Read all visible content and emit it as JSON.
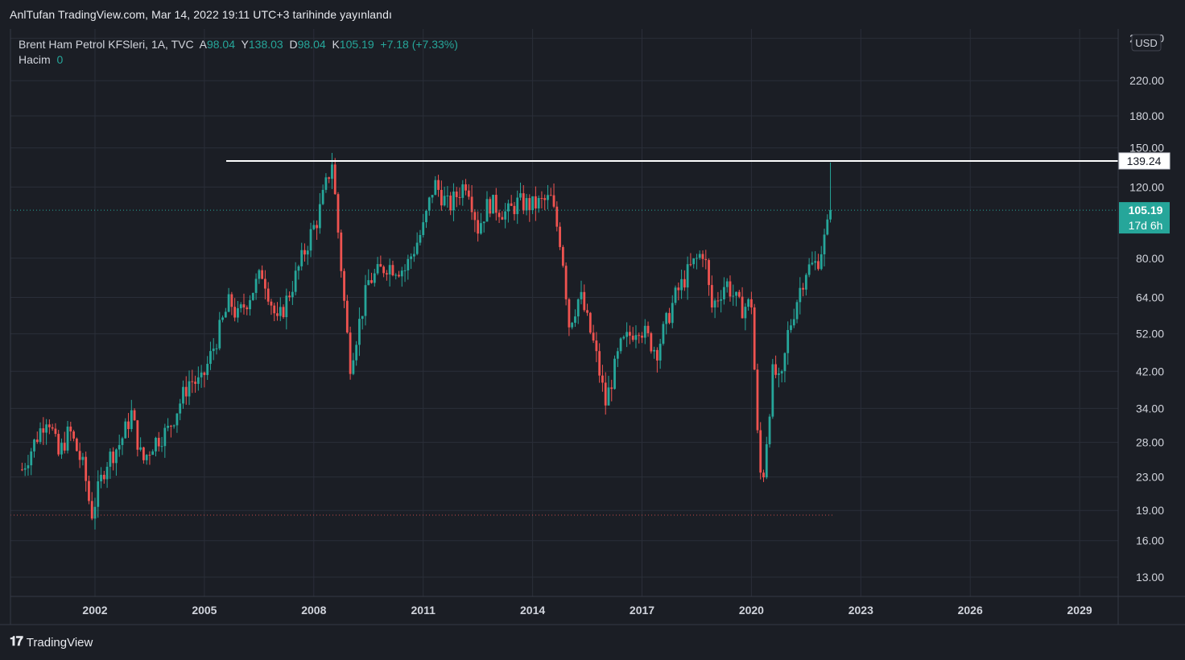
{
  "header": {
    "published": "AnlTufan TradingView.com, Mar 14, 2022 19:11 UTC+3 tarihinde yayınlandı"
  },
  "legend": {
    "symbol": "Brent Ham Petrol KFSleri, 1A, TVC",
    "open_label": "A",
    "open": "98.04",
    "high_label": "Y",
    "high": "138.03",
    "low_label": "D",
    "low": "98.04",
    "close_label": "K",
    "close": "105.19",
    "change": "+7.18 (+7.33%)",
    "volume_label": "Hacim",
    "volume": "0"
  },
  "price_axis": {
    "currency": "USD",
    "ticks": [
      "280.00",
      "220.00",
      "180.00",
      "150.00",
      "120.00",
      "80.00",
      "64.00",
      "52.00",
      "42.00",
      "34.00",
      "28.00",
      "23.00",
      "19.00",
      "16.00",
      "13.00"
    ],
    "horizontal_line_label": "139.24",
    "last_price_label": "105.19",
    "countdown_label": "17d 6h"
  },
  "time_axis": {
    "ticks": [
      "2002",
      "2005",
      "2008",
      "2011",
      "2014",
      "2017",
      "2020",
      "2023",
      "2026",
      "2029"
    ]
  },
  "brand": {
    "name": "TradingView"
  },
  "colors": {
    "up": "#26a69a",
    "down": "#ef5350",
    "background": "#1b1e25",
    "grid": "#2a2e39",
    "hline": "#ffffff"
  },
  "chart_data": {
    "type": "candlestick",
    "log_scale": true,
    "ylim": [
      12,
      290
    ],
    "xlim": [
      1999.8,
      2030.2
    ],
    "grid": true,
    "horizontal_line": 139.24,
    "last_close": 105.19,
    "series": [
      {
        "points": [
          {
            "x": 2000.0,
            "y": 24
          },
          {
            "x": 2000.7,
            "y": 33
          },
          {
            "x": 2001.0,
            "y": 26
          },
          {
            "x": 2001.3,
            "y": 30
          },
          {
            "x": 2001.7,
            "y": 24
          },
          {
            "x": 2001.9,
            "y": 18.5
          },
          {
            "x": 2002.3,
            "y": 25
          },
          {
            "x": 2002.7,
            "y": 28
          },
          {
            "x": 2003.0,
            "y": 33
          },
          {
            "x": 2003.3,
            "y": 25
          },
          {
            "x": 2003.6,
            "y": 28
          },
          {
            "x": 2004.0,
            "y": 30
          },
          {
            "x": 2004.6,
            "y": 40
          },
          {
            "x": 2004.9,
            "y": 39
          },
          {
            "x": 2005.7,
            "y": 63
          },
          {
            "x": 2005.9,
            "y": 57
          },
          {
            "x": 2006.6,
            "y": 74
          },
          {
            "x": 2007.0,
            "y": 55
          },
          {
            "x": 2007.5,
            "y": 72
          },
          {
            "x": 2007.9,
            "y": 91
          },
          {
            "x": 2008.1,
            "y": 100
          },
          {
            "x": 2008.5,
            "y": 139
          },
          {
            "x": 2008.9,
            "y": 53
          },
          {
            "x": 2009.0,
            "y": 44
          },
          {
            "x": 2009.5,
            "y": 70
          },
          {
            "x": 2010.0,
            "y": 77
          },
          {
            "x": 2010.5,
            "y": 75
          },
          {
            "x": 2011.0,
            "y": 95
          },
          {
            "x": 2011.3,
            "y": 123
          },
          {
            "x": 2011.7,
            "y": 107
          },
          {
            "x": 2012.2,
            "y": 125
          },
          {
            "x": 2012.5,
            "y": 95
          },
          {
            "x": 2012.8,
            "y": 110
          },
          {
            "x": 2013.3,
            "y": 103
          },
          {
            "x": 2013.6,
            "y": 110
          },
          {
            "x": 2014.0,
            "y": 108
          },
          {
            "x": 2014.5,
            "y": 112
          },
          {
            "x": 2014.8,
            "y": 85
          },
          {
            "x": 2015.0,
            "y": 55
          },
          {
            "x": 2015.3,
            "y": 65
          },
          {
            "x": 2015.7,
            "y": 48
          },
          {
            "x": 2016.0,
            "y": 35
          },
          {
            "x": 2016.4,
            "y": 48
          },
          {
            "x": 2016.9,
            "y": 55
          },
          {
            "x": 2017.4,
            "y": 47
          },
          {
            "x": 2017.9,
            "y": 64
          },
          {
            "x": 2018.3,
            "y": 75
          },
          {
            "x": 2018.7,
            "y": 84
          },
          {
            "x": 2018.9,
            "y": 60
          },
          {
            "x": 2019.3,
            "y": 70
          },
          {
            "x": 2019.7,
            "y": 60
          },
          {
            "x": 2020.0,
            "y": 62
          },
          {
            "x": 2020.2,
            "y": 25
          },
          {
            "x": 2020.3,
            "y": 22
          },
          {
            "x": 2020.6,
            "y": 43
          },
          {
            "x": 2020.8,
            "y": 38
          },
          {
            "x": 2021.0,
            "y": 52
          },
          {
            "x": 2021.3,
            "y": 66
          },
          {
            "x": 2021.5,
            "y": 75
          },
          {
            "x": 2021.8,
            "y": 78
          },
          {
            "x": 2022.0,
            "y": 89
          },
          {
            "x": 2022.2,
            "y": 105.19
          }
        ]
      }
    ]
  }
}
